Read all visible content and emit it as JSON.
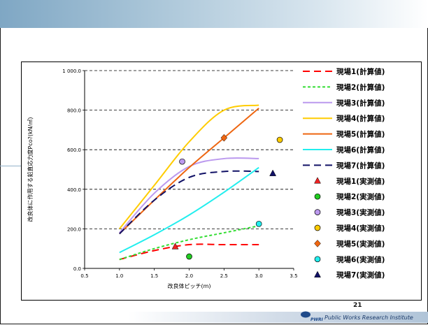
{
  "slide": {
    "page_number": "21",
    "organization": "Public Works Research Institute",
    "logo_text": "PWRI"
  },
  "chart_data": {
    "type": "line",
    "title": "",
    "xlabel": "改良体ピッチ(m)",
    "ylabel": "改良体に作用する鉛直応力度Pco?(kN/㎡)",
    "xlim": [
      0.5,
      3.5
    ],
    "ylim": [
      0,
      1000
    ],
    "x_ticks": [
      "0.5",
      "1.0",
      "1.5",
      "2.0",
      "2.5",
      "3.0",
      "3.5"
    ],
    "y_ticks": [
      "0.0",
      "200.0",
      "400.0",
      "600.0",
      "800.0",
      "1 000.0"
    ],
    "grid": "horizontal-dashed",
    "legend_position": "right",
    "series": [
      {
        "name": "現場1(計算値)",
        "color": "#ff0000",
        "dash": "long",
        "x": [
          1.0,
          1.5,
          2.0,
          2.5,
          3.0
        ],
        "y": [
          45,
          90,
          120,
          120,
          120
        ]
      },
      {
        "name": "現場2(計算値)",
        "color": "#33dd33",
        "dash": "short",
        "x": [
          1.0,
          1.5,
          2.0,
          2.5,
          3.0
        ],
        "y": [
          45,
          100,
          145,
          180,
          215
        ]
      },
      {
        "name": "現場3(計算値)",
        "color": "#bb99ee",
        "dash": "solid",
        "x": [
          1.0,
          1.5,
          2.0,
          2.5,
          3.0
        ],
        "y": [
          180,
          380,
          515,
          555,
          555
        ]
      },
      {
        "name": "現場4(計算値)",
        "color": "#ffcc00",
        "dash": "solid",
        "x": [
          1.0,
          1.5,
          2.0,
          2.5,
          3.0
        ],
        "y": [
          200,
          420,
          640,
          800,
          825
        ]
      },
      {
        "name": "現場5(計算値)",
        "color": "#ee6611",
        "dash": "solid",
        "x": [
          1.0,
          1.5,
          2.0,
          2.5,
          3.0
        ],
        "y": [
          175,
          345,
          510,
          660,
          810
        ]
      },
      {
        "name": "現場6(計算値)",
        "color": "#22eeee",
        "dash": "solid",
        "x": [
          1.0,
          1.5,
          2.0,
          2.5,
          3.0
        ],
        "y": [
          80,
          170,
          270,
          385,
          510
        ]
      },
      {
        "name": "現場7(計算値)",
        "color": "#111166",
        "dash": "long",
        "x": [
          1.0,
          1.5,
          2.0,
          2.5,
          3.0
        ],
        "y": [
          175,
          345,
          460,
          490,
          490
        ]
      }
    ],
    "points": [
      {
        "name": "現場1(実測値)",
        "shape": "triangle",
        "color": "#ee2222",
        "x": 1.8,
        "y": 110
      },
      {
        "name": "現場2(実測値)",
        "shape": "circle",
        "color": "#22cc22",
        "x": 2.0,
        "y": 60
      },
      {
        "name": "現場3(実測値)",
        "shape": "circle",
        "color": "#bb99ee",
        "x": 1.9,
        "y": 540
      },
      {
        "name": "現場4(実測値)",
        "shape": "circle",
        "color": "#ffcc00",
        "x": 3.3,
        "y": 650
      },
      {
        "name": "現場5(実測値)",
        "shape": "diamond",
        "color": "#ee6611",
        "x": 2.5,
        "y": 660
      },
      {
        "name": "現場6(実測値)",
        "shape": "circle",
        "color": "#22eeee",
        "x": 3.0,
        "y": 225
      },
      {
        "name": "現場7(実測値)",
        "shape": "triangle",
        "color": "#111166",
        "x": 3.2,
        "y": 480
      }
    ]
  }
}
